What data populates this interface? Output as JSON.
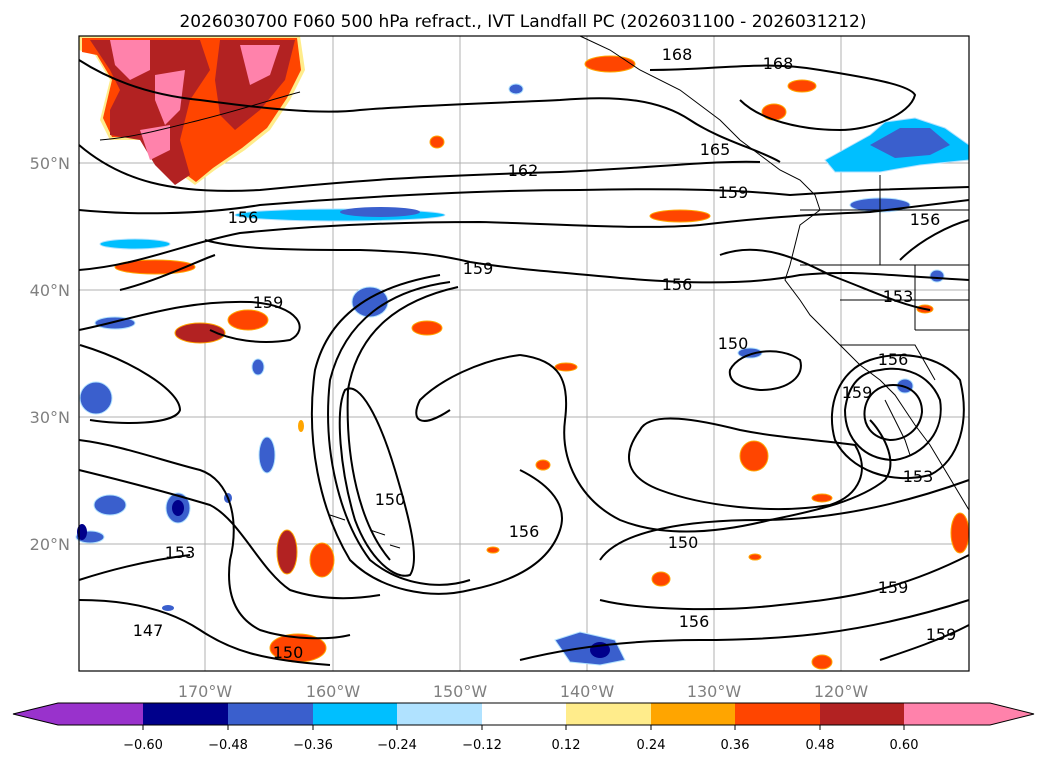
{
  "title": "2026030700 F060 500 hPa refract., IVT Landfall PC (2026031100 - 2026031212)",
  "map": {
    "lat_labels": [
      "50°N",
      "40°N",
      "30°N",
      "20°N"
    ],
    "lon_labels": [
      "170°W",
      "160°W",
      "150°W",
      "140°W",
      "130°W",
      "120°W"
    ],
    "contour_labels": [
      "168",
      "168",
      "165",
      "162",
      "159",
      "156",
      "156",
      "159",
      "156",
      "153",
      "159",
      "150",
      "156",
      "159",
      "153",
      "150",
      "156",
      "150",
      "153",
      "147",
      "150",
      "156",
      "159",
      "159"
    ],
    "line_color": "#000000",
    "grid_color": "#b0b0b0"
  },
  "colorbar": {
    "colors": [
      "#9932cc",
      "#00008b",
      "#3a5fcd",
      "#00bfff",
      "#b0e2ff",
      "#ffffff",
      "#ffec8b",
      "#ffa500",
      "#ff4500",
      "#b22222",
      "#ff82ab"
    ],
    "tick_labels": [
      "−0.60",
      "−0.48",
      "−0.36",
      "−0.24",
      "−0.12",
      "0.12",
      "0.24",
      "0.36",
      "0.48",
      "0.60"
    ]
  },
  "fill_colors": {
    "neg_light": "#b0e2ff",
    "neg_mid": "#00bfff",
    "neg_strong": "#3a5fcd",
    "neg_max": "#00008b",
    "pos_light": "#ffec8b",
    "pos_mid": "#ffa500",
    "pos_strong": "#ff4500",
    "pos_deep": "#b22222",
    "pos_max": "#ff82ab"
  }
}
